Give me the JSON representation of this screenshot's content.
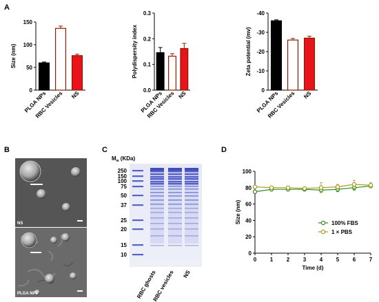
{
  "panels": {
    "a": "A",
    "b": "B",
    "c": "C",
    "d": "D"
  },
  "colors": {
    "plga": "#000000",
    "rbc": "#8b1a00",
    "ns": "#e8141a",
    "fbs": "#2e8b1e",
    "pbs": "#a89a1a",
    "gel_band": "#4a55c8"
  },
  "chart_data": [
    {
      "type": "bar",
      "ylabel": "Size (nm)",
      "categories": [
        "PLGA NPs",
        "RBC Vesicles",
        "NS"
      ],
      "values": [
        60,
        136,
        76
      ],
      "errors": [
        2,
        5,
        3
      ],
      "fills": [
        "#000000",
        "#ffffff",
        "#e8141a"
      ],
      "strokes": [
        "#000000",
        "#8b1a00",
        "#8b1a00"
      ],
      "ylim": [
        0,
        150
      ],
      "yticks": [
        "0",
        "50",
        "100",
        "150"
      ]
    },
    {
      "type": "bar",
      "ylabel": "Polydispersity index",
      "categories": [
        "PLGA NPs",
        "RBC Vesicles",
        "NS"
      ],
      "values": [
        0.146,
        0.132,
        0.162
      ],
      "errors": [
        0.02,
        0.01,
        0.02
      ],
      "fills": [
        "#000000",
        "#ffffff",
        "#e8141a"
      ],
      "strokes": [
        "#000000",
        "#8b1a00",
        "#8b1a00"
      ],
      "ylim": [
        0,
        0.3
      ],
      "yticks": [
        "0.0",
        "0.1",
        "0.2",
        "0.3"
      ]
    },
    {
      "type": "bar",
      "ylabel": "Zeta potential (mv)",
      "categories": [
        "PLGA NPs",
        "RBC Vesicles",
        "NS"
      ],
      "values": [
        -36,
        -26,
        -27
      ],
      "errors": [
        0.5,
        0.8,
        1
      ],
      "fills": [
        "#000000",
        "#ffffff",
        "#e8141a"
      ],
      "strokes": [
        "#000000",
        "#8b1a00",
        "#8b1a00"
      ],
      "ylim": [
        0,
        -40
      ],
      "yticks": [
        "0",
        "-10",
        "-20",
        "-30",
        "-40"
      ]
    },
    {
      "type": "line",
      "xlabel": "Time (d)",
      "ylabel": "Size (nm)",
      "x": [
        0,
        1,
        2,
        3,
        4,
        5,
        6,
        7
      ],
      "xlim": [
        0,
        7
      ],
      "ylim": [
        0,
        100
      ],
      "xticks": [
        "0",
        "1",
        "2",
        "3",
        "4",
        "5",
        "6",
        "7"
      ],
      "yticks": [
        "0",
        "20",
        "40",
        "60",
        "80",
        "100"
      ],
      "legend_position": "lower-right",
      "series": [
        {
          "name": "100% FBS",
          "values": [
            75,
            78,
            78,
            78,
            77,
            78,
            80,
            82
          ],
          "errors": [
            2,
            2,
            2,
            1,
            3,
            3,
            3,
            2
          ],
          "color": "#2e8b1e"
        },
        {
          "name": "1 × PBS",
          "values": [
            81,
            80,
            80,
            79,
            80,
            81,
            84,
            83
          ],
          "errors": [
            1,
            2,
            2,
            1,
            6,
            3,
            5,
            3
          ],
          "color": "#a89a1a"
        }
      ]
    }
  ],
  "micrographs": {
    "top": "NS",
    "bottom": "PLGA NPs"
  },
  "gel": {
    "mw_label": "M",
    "mw_sub": "w",
    "mw_unit": " (KDa)",
    "markers": [
      "250",
      "150",
      "100",
      "75",
      "50",
      "37",
      "25",
      "20",
      "15",
      "10"
    ],
    "lanes": [
      "RBC ghosts",
      "RBC vesicles",
      "NS"
    ]
  }
}
